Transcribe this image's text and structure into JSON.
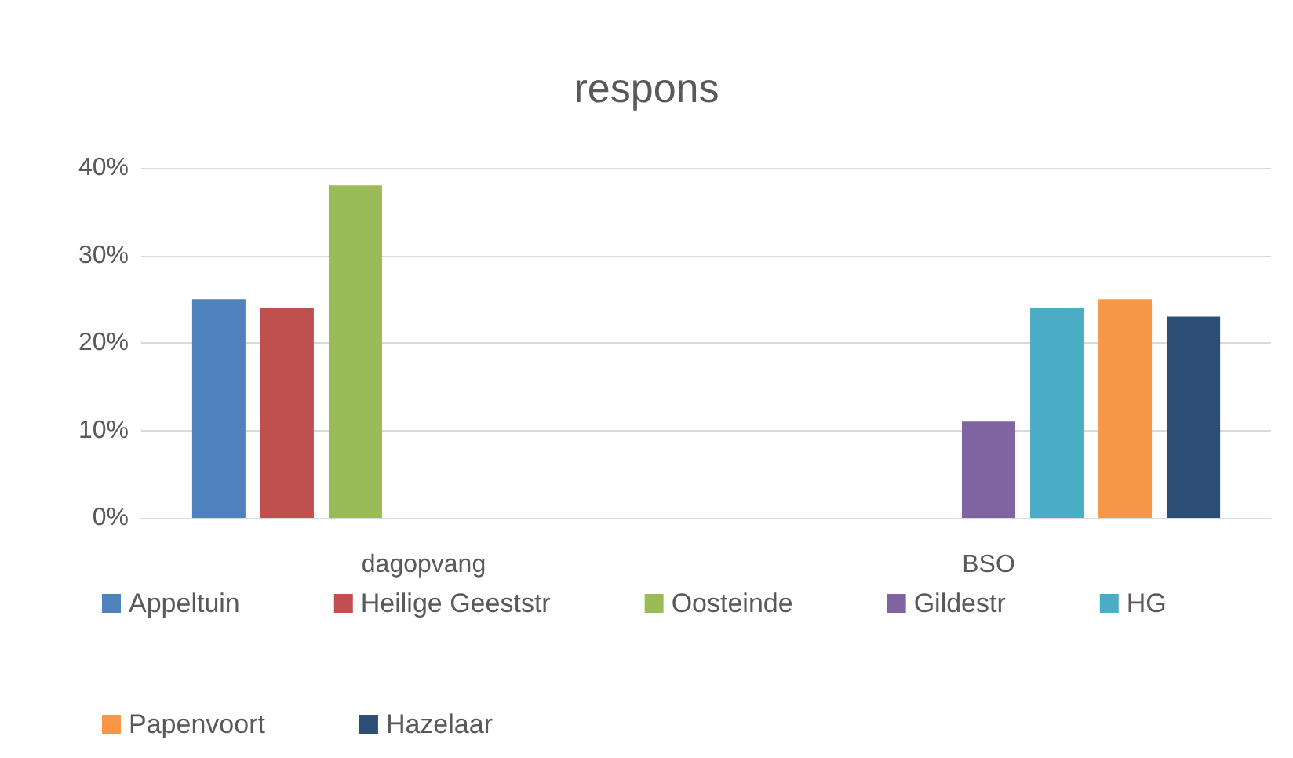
{
  "chart_data": {
    "type": "bar",
    "title": "respons",
    "categories": [
      "dagopvang",
      "BSO"
    ],
    "series": [
      {
        "name": "Appeltuin",
        "color": "#4f81bd",
        "values": [
          25,
          null
        ]
      },
      {
        "name": "Heilige Geeststr",
        "color": "#c0504d",
        "values": [
          24,
          null
        ]
      },
      {
        "name": "Oosteinde",
        "color": "#9bbb59",
        "values": [
          38,
          null
        ]
      },
      {
        "name": "Gildestr",
        "color": "#8064a2",
        "values": [
          null,
          11
        ]
      },
      {
        "name": "HG",
        "color": "#4bacc6",
        "values": [
          null,
          24
        ]
      },
      {
        "name": "Papenvoort",
        "color": "#f79646",
        "values": [
          null,
          25
        ]
      },
      {
        "name": "Hazelaar",
        "color": "#2c4d75",
        "values": [
          null,
          23
        ]
      }
    ],
    "ylim": [
      0,
      40
    ],
    "yticks": [
      {
        "value": 0,
        "label": "0%"
      },
      {
        "value": 10,
        "label": "10%"
      },
      {
        "value": 20,
        "label": "20%"
      },
      {
        "value": 30,
        "label": "30%"
      },
      {
        "value": 40,
        "label": "40%"
      }
    ],
    "grid": "y",
    "legend": "bottom"
  }
}
